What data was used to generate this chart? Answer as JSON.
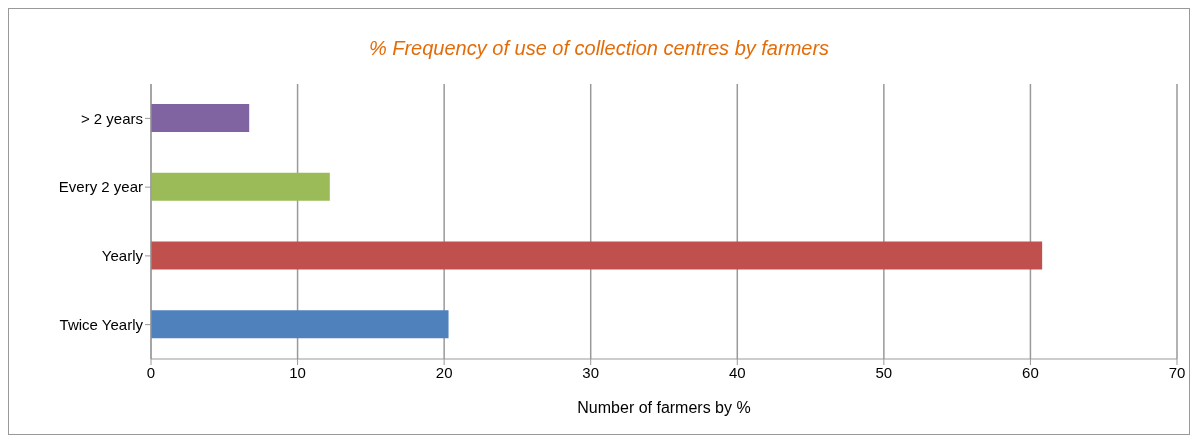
{
  "chart_data": {
    "type": "bar",
    "orientation": "horizontal",
    "title": "% Frequency of use of collection centres by farmers",
    "xlabel": "Number of farmers by %",
    "categories": [
      "> 2 years",
      "Every 2 year",
      "Yearly",
      "Twice Yearly"
    ],
    "values": [
      6.7,
      12.2,
      60.8,
      20.3
    ],
    "colors": [
      "#8064a2",
      "#9bbb59",
      "#c0504d",
      "#4f81bd"
    ],
    "xlim": [
      0,
      70
    ],
    "xticks": [
      0,
      10,
      20,
      30,
      40,
      50,
      60,
      70
    ],
    "grid": "x"
  }
}
